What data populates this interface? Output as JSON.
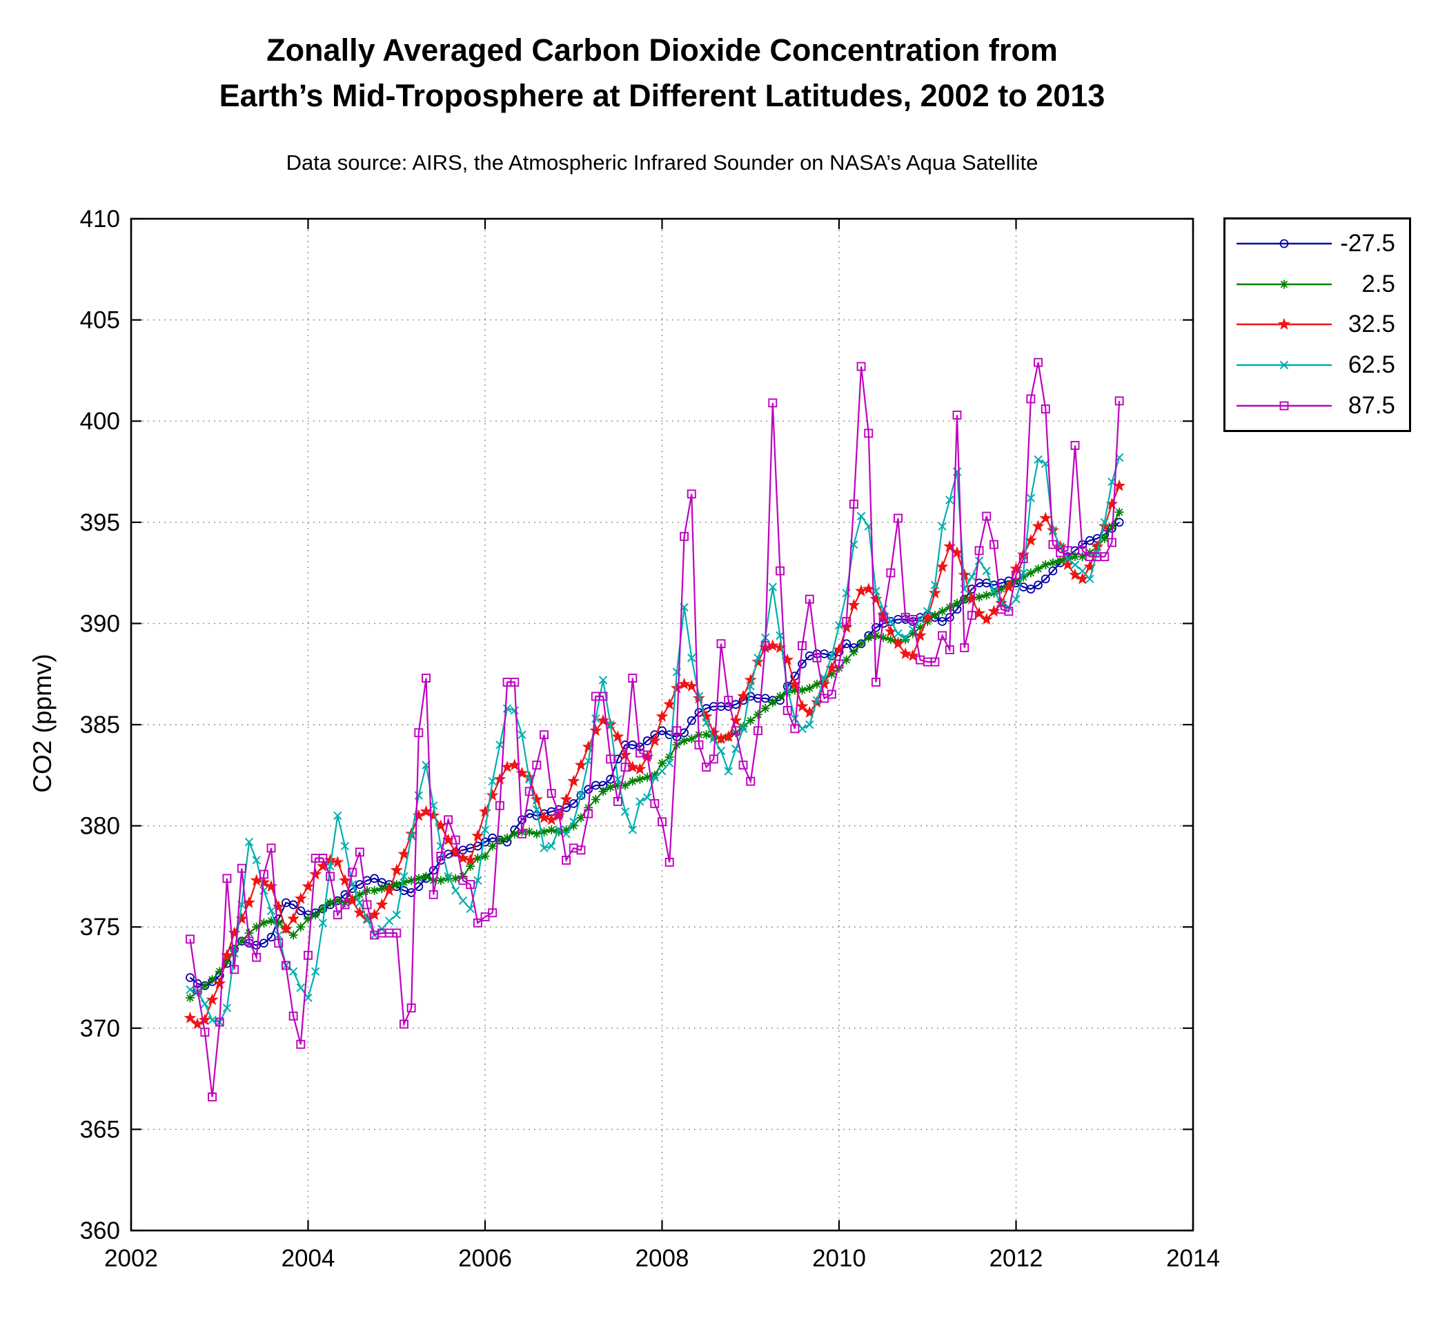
{
  "chart": {
    "title_line1": "Zonally Averaged Carbon Dioxide Concentration from",
    "title_line2": "Earth’s Mid-Troposphere at Different Latitudes, 2002 to 2013",
    "subtitle": "Data source: AIRS, the Atmospheric Infrared Sounder on NASA’s Aqua Satellite",
    "ylabel": "CO2 (ppmv)"
  },
  "chart_data": {
    "type": "line",
    "title": "Zonally Averaged Carbon Dioxide Concentration from Earth’s Mid-Troposphere at Different Latitudes, 2002 to 2013",
    "subtitle": "Data source: AIRS, the Atmospheric Infrared Sounder on NASA’s Aqua Satellite",
    "xlabel": "",
    "ylabel": "CO2 (ppmv)",
    "xlim": [
      2002,
      2014
    ],
    "ylim": [
      360,
      410
    ],
    "x_ticks": [
      2002,
      2004,
      2006,
      2008,
      2010,
      2012,
      2014
    ],
    "y_ticks": [
      360,
      365,
      370,
      375,
      380,
      385,
      390,
      395,
      400,
      405,
      410
    ],
    "grid": true,
    "legend_position": "outside-right",
    "x_start": 2002.6667,
    "x_step_years": 0.0833333,
    "x_unit": "decimal year (monthly values, Sep 2002 – Mar 2013)",
    "series": [
      {
        "name": "-27.5",
        "color": "#0000A8",
        "marker": "circle",
        "values": [
          372.5,
          372.2,
          372.1,
          372.3,
          372.6,
          373.2,
          373.9,
          374.3,
          374.2,
          374.1,
          374.2,
          374.5,
          375.4,
          376.2,
          376.1,
          375.8,
          375.6,
          375.7,
          375.9,
          376.1,
          376.3,
          376.6,
          376.9,
          377.1,
          377.3,
          377.4,
          377.2,
          377.1,
          377.0,
          376.8,
          376.7,
          377.0,
          377.4,
          377.8,
          378.3,
          378.6,
          378.7,
          378.8,
          378.9,
          379.0,
          379.2,
          379.4,
          379.3,
          379.2,
          379.8,
          380.3,
          380.6,
          380.5,
          380.6,
          380.7,
          380.8,
          380.9,
          381.1,
          381.5,
          381.8,
          382.0,
          382.0,
          382.3,
          383.3,
          384.0,
          384.0,
          383.9,
          384.2,
          384.5,
          384.7,
          384.5,
          384.4,
          384.6,
          385.2,
          385.6,
          385.8,
          385.9,
          385.9,
          385.9,
          386.0,
          386.2,
          386.4,
          386.3,
          386.3,
          386.2,
          386.2,
          386.9,
          387.4,
          388.0,
          388.4,
          388.5,
          388.5,
          388.4,
          388.6,
          389.0,
          388.8,
          389.0,
          389.4,
          389.8,
          390.0,
          390.1,
          390.2,
          390.2,
          390.1,
          390.3,
          390.4,
          390.3,
          390.1,
          390.3,
          390.7,
          391.2,
          391.7,
          392.0,
          392.0,
          391.9,
          392.0,
          392.1,
          392.0,
          391.8,
          391.7,
          391.9,
          392.2,
          392.6,
          393.0,
          393.3,
          393.6,
          393.9,
          394.1,
          394.2,
          394.4,
          394.7,
          395.0
        ]
      },
      {
        "name": "2.5",
        "color": "#008000",
        "marker": "asterisk",
        "values": [
          371.5,
          371.8,
          372.1,
          372.4,
          372.8,
          373.3,
          373.9,
          374.3,
          374.7,
          375.0,
          375.2,
          375.3,
          375.2,
          374.9,
          374.6,
          375.0,
          375.4,
          375.6,
          375.9,
          376.2,
          376.3,
          376.2,
          376.4,
          376.6,
          376.8,
          376.8,
          376.9,
          377.0,
          377.1,
          377.2,
          377.3,
          377.4,
          377.5,
          377.3,
          377.3,
          377.4,
          377.4,
          377.5,
          378.0,
          378.4,
          378.5,
          379.0,
          379.3,
          379.4,
          379.6,
          379.7,
          379.7,
          379.6,
          379.7,
          379.8,
          379.7,
          379.8,
          380.0,
          380.4,
          380.9,
          381.3,
          381.7,
          381.9,
          382.0,
          382.0,
          382.2,
          382.3,
          382.4,
          382.5,
          383.1,
          383.4,
          384.0,
          384.2,
          384.3,
          384.5,
          384.5,
          384.4,
          384.3,
          384.4,
          384.6,
          384.9,
          385.2,
          385.5,
          385.8,
          386.1,
          386.4,
          386.6,
          386.7,
          386.7,
          386.8,
          387.0,
          387.2,
          387.5,
          387.8,
          388.2,
          388.6,
          389.0,
          389.3,
          389.4,
          389.3,
          389.2,
          389.1,
          389.2,
          389.5,
          389.8,
          390.1,
          390.4,
          390.6,
          390.8,
          391.0,
          391.2,
          391.3,
          391.3,
          391.4,
          391.5,
          391.7,
          391.9,
          392.1,
          392.3,
          392.5,
          392.7,
          392.9,
          393.0,
          393.1,
          393.2,
          393.3,
          393.3,
          393.5,
          393.8,
          394.2,
          394.8,
          395.5
        ]
      },
      {
        "name": "32.5",
        "color": "#F01414",
        "marker": "star",
        "values": [
          370.5,
          370.2,
          370.4,
          371.4,
          372.2,
          373.6,
          374.7,
          375.4,
          376.2,
          377.3,
          377.2,
          377.0,
          376.0,
          374.9,
          375.4,
          376.4,
          377.0,
          377.6,
          378.0,
          378.3,
          378.2,
          377.3,
          376.3,
          375.7,
          375.4,
          375.6,
          376.1,
          376.8,
          377.8,
          378.6,
          379.6,
          380.5,
          380.7,
          380.5,
          380.0,
          379.3,
          378.7,
          378.4,
          378.3,
          379.5,
          380.7,
          381.5,
          382.3,
          382.9,
          383.0,
          382.6,
          382.4,
          381.3,
          380.4,
          380.3,
          380.5,
          381.3,
          382.2,
          383.0,
          383.9,
          384.7,
          385.2,
          385.0,
          384.4,
          383.5,
          382.9,
          382.8,
          383.4,
          384.2,
          385.4,
          386.0,
          386.8,
          387.0,
          386.9,
          386.3,
          385.4,
          384.6,
          384.3,
          384.4,
          385.2,
          386.4,
          387.2,
          388.1,
          388.8,
          388.9,
          388.8,
          388.2,
          387.0,
          385.9,
          385.6,
          386.1,
          387.0,
          387.8,
          388.7,
          389.8,
          390.9,
          391.6,
          391.7,
          391.2,
          390.4,
          389.6,
          389.0,
          388.5,
          388.4,
          389.4,
          390.3,
          391.5,
          392.8,
          393.8,
          393.5,
          392.4,
          391.2,
          390.5,
          390.2,
          390.6,
          391.0,
          391.8,
          392.7,
          393.4,
          394.1,
          394.8,
          395.2,
          394.6,
          393.8,
          392.9,
          392.4,
          392.2,
          392.8,
          393.8,
          394.8,
          395.9,
          396.8
        ]
      },
      {
        "name": "62.5",
        "color": "#00AEAE",
        "marker": "x",
        "values": [
          371.9,
          371.8,
          371.2,
          370.4,
          370.3,
          371.0,
          373.7,
          376.1,
          379.2,
          378.3,
          376.8,
          375.8,
          374.6,
          373.1,
          372.8,
          372.0,
          371.5,
          372.8,
          375.2,
          378.0,
          380.5,
          379.0,
          377.1,
          376.2,
          375.4,
          374.6,
          374.9,
          375.3,
          375.6,
          377.5,
          379.5,
          381.5,
          383.0,
          381.0,
          379.0,
          377.5,
          376.8,
          376.3,
          375.9,
          377.3,
          379.8,
          382.2,
          384.0,
          385.8,
          385.7,
          384.5,
          382.3,
          380.8,
          378.9,
          379.0,
          379.8,
          379.6,
          380.2,
          381.5,
          383.2,
          385.3,
          387.2,
          385.0,
          382.3,
          380.7,
          379.8,
          381.2,
          381.4,
          382.4,
          382.7,
          383.1,
          387.6,
          390.8,
          388.3,
          386.4,
          385.1,
          384.3,
          383.7,
          382.7,
          383.8,
          384.8,
          386.9,
          388.3,
          389.3,
          391.8,
          389.4,
          386.8,
          385.3,
          384.8,
          385.0,
          386.2,
          387.3,
          388.4,
          389.9,
          391.5,
          393.9,
          395.3,
          394.8,
          391.6,
          390.7,
          390.1,
          389.5,
          389.3,
          389.7,
          390.2,
          390.6,
          391.9,
          394.8,
          396.1,
          397.5,
          391.7,
          392.3,
          393.1,
          392.6,
          391.6,
          391.0,
          390.8,
          391.2,
          392.5,
          396.2,
          398.1,
          397.9,
          394.6,
          393.8,
          393.2,
          392.9,
          392.6,
          392.2,
          393.5,
          395.0,
          397.0,
          398.2
        ]
      },
      {
        "name": "87.5",
        "color": "#BF00BF",
        "marker": "square",
        "values": [
          374.4,
          371.9,
          369.8,
          366.6,
          370.3,
          377.4,
          372.9,
          377.9,
          374.3,
          373.5,
          377.6,
          378.9,
          374.2,
          373.1,
          370.6,
          369.2,
          373.6,
          378.4,
          378.4,
          377.5,
          375.6,
          376.1,
          377.7,
          378.7,
          376.1,
          374.6,
          374.7,
          374.7,
          374.7,
          370.2,
          371.0,
          384.6,
          387.3,
          376.6,
          378.5,
          380.3,
          379.3,
          377.3,
          377.1,
          375.2,
          375.5,
          375.7,
          381.0,
          387.1,
          387.1,
          379.6,
          381.7,
          383.0,
          384.5,
          381.6,
          380.6,
          378.3,
          378.9,
          378.8,
          380.6,
          386.4,
          386.4,
          383.3,
          381.2,
          382.9,
          387.3,
          383.6,
          383.5,
          381.1,
          380.2,
          378.2,
          384.7,
          394.3,
          396.4,
          384.0,
          382.9,
          383.3,
          389.0,
          386.2,
          384.7,
          383.0,
          382.2,
          384.7,
          388.9,
          400.9,
          392.6,
          385.7,
          384.8,
          388.9,
          391.2,
          388.3,
          386.3,
          386.5,
          388.0,
          390.1,
          395.9,
          402.7,
          399.4,
          387.1,
          390.3,
          392.5,
          395.2,
          390.3,
          390.2,
          388.2,
          388.1,
          388.1,
          389.4,
          388.7,
          400.3,
          388.8,
          390.4,
          393.6,
          395.3,
          393.9,
          390.7,
          390.6,
          392.4,
          393.2,
          401.1,
          402.9,
          400.6,
          393.9,
          393.5,
          393.6,
          398.8,
          393.6,
          393.3,
          393.3,
          393.3,
          394.0,
          401.0
        ]
      }
    ]
  }
}
